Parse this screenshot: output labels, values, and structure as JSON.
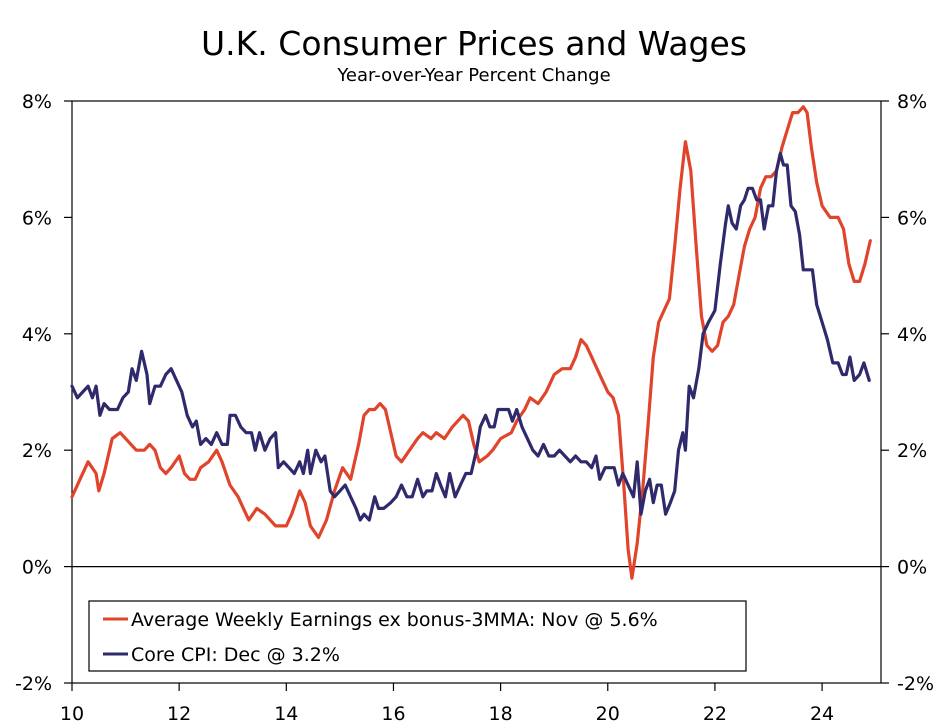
{
  "chart_data": {
    "type": "line",
    "title": "U.K. Consumer Prices and Wages",
    "subtitle": "Year-over-Year Percent Change",
    "xlabel": "",
    "ylabel": "",
    "xlim": [
      2010,
      2025.1
    ],
    "ylim": [
      -2,
      8
    ],
    "x_ticks": [
      {
        "value": 2010,
        "label": "10"
      },
      {
        "value": 2012,
        "label": "12"
      },
      {
        "value": 2014,
        "label": "14"
      },
      {
        "value": 2016,
        "label": "16"
      },
      {
        "value": 2018,
        "label": "18"
      },
      {
        "value": 2020,
        "label": "20"
      },
      {
        "value": 2022,
        "label": "22"
      },
      {
        "value": 2024,
        "label": "24"
      }
    ],
    "y_ticks": [
      {
        "value": 8,
        "label": "8%"
      },
      {
        "value": 6,
        "label": "6%"
      },
      {
        "value": 4,
        "label": "4%"
      },
      {
        "value": 2,
        "label": "2%"
      },
      {
        "value": 0,
        "label": "0%"
      },
      {
        "value": -2,
        "label": "-2%"
      }
    ],
    "grid": false,
    "zero_line": true,
    "legend_position": "bottom-left",
    "series": [
      {
        "name": "Average Weekly Earnings ex bonus-3MMA: Nov @ 5.6%",
        "color": "#e0442a",
        "points": [
          [
            2010.0,
            1.2
          ],
          [
            2010.15,
            1.5
          ],
          [
            2010.3,
            1.8
          ],
          [
            2010.45,
            1.6
          ],
          [
            2010.5,
            1.3
          ],
          [
            2010.6,
            1.6
          ],
          [
            2010.75,
            2.2
          ],
          [
            2010.9,
            2.3
          ],
          [
            2011.0,
            2.2
          ],
          [
            2011.2,
            2.0
          ],
          [
            2011.35,
            2.0
          ],
          [
            2011.45,
            2.1
          ],
          [
            2011.55,
            2.0
          ],
          [
            2011.65,
            1.7
          ],
          [
            2011.75,
            1.6
          ],
          [
            2011.85,
            1.7
          ],
          [
            2012.0,
            1.9
          ],
          [
            2012.1,
            1.6
          ],
          [
            2012.2,
            1.5
          ],
          [
            2012.3,
            1.5
          ],
          [
            2012.4,
            1.7
          ],
          [
            2012.55,
            1.8
          ],
          [
            2012.7,
            2.0
          ],
          [
            2012.8,
            1.8
          ],
          [
            2012.95,
            1.4
          ],
          [
            2013.1,
            1.2
          ],
          [
            2013.2,
            1.0
          ],
          [
            2013.3,
            0.8
          ],
          [
            2013.45,
            1.0
          ],
          [
            2013.6,
            0.9
          ],
          [
            2013.8,
            0.7
          ],
          [
            2014.0,
            0.7
          ],
          [
            2014.1,
            0.9
          ],
          [
            2014.25,
            1.3
          ],
          [
            2014.35,
            1.1
          ],
          [
            2014.45,
            0.7
          ],
          [
            2014.6,
            0.5
          ],
          [
            2014.75,
            0.8
          ],
          [
            2014.9,
            1.3
          ],
          [
            2015.05,
            1.7
          ],
          [
            2015.2,
            1.5
          ],
          [
            2015.35,
            2.1
          ],
          [
            2015.45,
            2.6
          ],
          [
            2015.55,
            2.7
          ],
          [
            2015.65,
            2.7
          ],
          [
            2015.75,
            2.8
          ],
          [
            2015.85,
            2.7
          ],
          [
            2015.95,
            2.3
          ],
          [
            2016.05,
            1.9
          ],
          [
            2016.15,
            1.8
          ],
          [
            2016.3,
            2.0
          ],
          [
            2016.45,
            2.2
          ],
          [
            2016.55,
            2.3
          ],
          [
            2016.7,
            2.2
          ],
          [
            2016.8,
            2.3
          ],
          [
            2016.95,
            2.2
          ],
          [
            2017.1,
            2.4
          ],
          [
            2017.3,
            2.6
          ],
          [
            2017.4,
            2.5
          ],
          [
            2017.5,
            2.1
          ],
          [
            2017.6,
            1.8
          ],
          [
            2017.75,
            1.9
          ],
          [
            2017.85,
            2.0
          ],
          [
            2018.0,
            2.2
          ],
          [
            2018.2,
            2.3
          ],
          [
            2018.3,
            2.5
          ],
          [
            2018.45,
            2.7
          ],
          [
            2018.55,
            2.9
          ],
          [
            2018.7,
            2.8
          ],
          [
            2018.85,
            3.0
          ],
          [
            2019.0,
            3.3
          ],
          [
            2019.15,
            3.4
          ],
          [
            2019.3,
            3.4
          ],
          [
            2019.4,
            3.6
          ],
          [
            2019.5,
            3.9
          ],
          [
            2019.6,
            3.8
          ],
          [
            2019.7,
            3.6
          ],
          [
            2019.8,
            3.4
          ],
          [
            2019.9,
            3.2
          ],
          [
            2020.0,
            3.0
          ],
          [
            2020.1,
            2.9
          ],
          [
            2020.2,
            2.6
          ],
          [
            2020.3,
            1.4
          ],
          [
            2020.38,
            0.3
          ],
          [
            2020.45,
            -0.2
          ],
          [
            2020.55,
            0.4
          ],
          [
            2020.65,
            1.3
          ],
          [
            2020.75,
            2.4
          ],
          [
            2020.85,
            3.6
          ],
          [
            2020.95,
            4.2
          ],
          [
            2021.05,
            4.4
          ],
          [
            2021.15,
            4.6
          ],
          [
            2021.25,
            5.5
          ],
          [
            2021.35,
            6.5
          ],
          [
            2021.45,
            7.3
          ],
          [
            2021.55,
            6.8
          ],
          [
            2021.65,
            5.5
          ],
          [
            2021.75,
            4.3
          ],
          [
            2021.85,
            3.8
          ],
          [
            2021.95,
            3.7
          ],
          [
            2022.05,
            3.8
          ],
          [
            2022.15,
            4.2
          ],
          [
            2022.25,
            4.3
          ],
          [
            2022.35,
            4.5
          ],
          [
            2022.45,
            5.0
          ],
          [
            2022.55,
            5.5
          ],
          [
            2022.65,
            5.8
          ],
          [
            2022.75,
            6.0
          ],
          [
            2022.85,
            6.5
          ],
          [
            2022.95,
            6.7
          ],
          [
            2023.05,
            6.7
          ],
          [
            2023.15,
            6.8
          ],
          [
            2023.25,
            7.2
          ],
          [
            2023.35,
            7.5
          ],
          [
            2023.45,
            7.8
          ],
          [
            2023.55,
            7.8
          ],
          [
            2023.65,
            7.9
          ],
          [
            2023.72,
            7.8
          ],
          [
            2023.8,
            7.2
          ],
          [
            2023.9,
            6.6
          ],
          [
            2024.0,
            6.2
          ],
          [
            2024.15,
            6.0
          ],
          [
            2024.3,
            6.0
          ],
          [
            2024.4,
            5.8
          ],
          [
            2024.5,
            5.2
          ],
          [
            2024.6,
            4.9
          ],
          [
            2024.7,
            4.9
          ],
          [
            2024.8,
            5.2
          ],
          [
            2024.9,
            5.6
          ]
        ]
      },
      {
        "name": "Core CPI: Dec @ 3.2%",
        "color": "#2e2a6b",
        "points": [
          [
            2010.0,
            3.1
          ],
          [
            2010.1,
            2.9
          ],
          [
            2010.2,
            3.0
          ],
          [
            2010.3,
            3.1
          ],
          [
            2010.38,
            2.9
          ],
          [
            2010.45,
            3.1
          ],
          [
            2010.52,
            2.6
          ],
          [
            2010.6,
            2.8
          ],
          [
            2010.7,
            2.7
          ],
          [
            2010.85,
            2.7
          ],
          [
            2010.95,
            2.9
          ],
          [
            2011.05,
            3.0
          ],
          [
            2011.12,
            3.4
          ],
          [
            2011.2,
            3.2
          ],
          [
            2011.3,
            3.7
          ],
          [
            2011.4,
            3.3
          ],
          [
            2011.45,
            2.8
          ],
          [
            2011.55,
            3.1
          ],
          [
            2011.65,
            3.1
          ],
          [
            2011.75,
            3.3
          ],
          [
            2011.85,
            3.4
          ],
          [
            2011.95,
            3.2
          ],
          [
            2012.05,
            3.0
          ],
          [
            2012.15,
            2.6
          ],
          [
            2012.25,
            2.4
          ],
          [
            2012.32,
            2.5
          ],
          [
            2012.4,
            2.1
          ],
          [
            2012.5,
            2.2
          ],
          [
            2012.6,
            2.1
          ],
          [
            2012.7,
            2.3
          ],
          [
            2012.8,
            2.1
          ],
          [
            2012.9,
            2.1
          ],
          [
            2012.95,
            2.6
          ],
          [
            2013.05,
            2.6
          ],
          [
            2013.15,
            2.4
          ],
          [
            2013.25,
            2.3
          ],
          [
            2013.35,
            2.3
          ],
          [
            2013.42,
            2.0
          ],
          [
            2013.5,
            2.3
          ],
          [
            2013.6,
            2.0
          ],
          [
            2013.7,
            2.2
          ],
          [
            2013.8,
            2.3
          ],
          [
            2013.85,
            1.7
          ],
          [
            2013.95,
            1.8
          ],
          [
            2014.05,
            1.7
          ],
          [
            2014.15,
            1.6
          ],
          [
            2014.25,
            1.8
          ],
          [
            2014.32,
            1.6
          ],
          [
            2014.4,
            2.0
          ],
          [
            2014.45,
            1.6
          ],
          [
            2014.55,
            2.0
          ],
          [
            2014.65,
            1.8
          ],
          [
            2014.72,
            1.9
          ],
          [
            2014.82,
            1.3
          ],
          [
            2014.9,
            1.2
          ],
          [
            2015.0,
            1.3
          ],
          [
            2015.1,
            1.4
          ],
          [
            2015.2,
            1.2
          ],
          [
            2015.3,
            1.0
          ],
          [
            2015.38,
            0.8
          ],
          [
            2015.45,
            0.9
          ],
          [
            2015.55,
            0.8
          ],
          [
            2015.65,
            1.2
          ],
          [
            2015.72,
            1.0
          ],
          [
            2015.82,
            1.0
          ],
          [
            2015.95,
            1.1
          ],
          [
            2016.05,
            1.2
          ],
          [
            2016.15,
            1.4
          ],
          [
            2016.25,
            1.2
          ],
          [
            2016.35,
            1.2
          ],
          [
            2016.45,
            1.5
          ],
          [
            2016.55,
            1.2
          ],
          [
            2016.62,
            1.3
          ],
          [
            2016.72,
            1.3
          ],
          [
            2016.8,
            1.6
          ],
          [
            2016.88,
            1.4
          ],
          [
            2016.97,
            1.2
          ],
          [
            2017.05,
            1.6
          ],
          [
            2017.15,
            1.2
          ],
          [
            2017.25,
            1.4
          ],
          [
            2017.35,
            1.6
          ],
          [
            2017.45,
            1.6
          ],
          [
            2017.55,
            2.0
          ],
          [
            2017.62,
            2.4
          ],
          [
            2017.72,
            2.6
          ],
          [
            2017.8,
            2.4
          ],
          [
            2017.88,
            2.4
          ],
          [
            2017.95,
            2.7
          ],
          [
            2018.05,
            2.7
          ],
          [
            2018.15,
            2.7
          ],
          [
            2018.22,
            2.5
          ],
          [
            2018.3,
            2.7
          ],
          [
            2018.4,
            2.4
          ],
          [
            2018.5,
            2.2
          ],
          [
            2018.6,
            2.0
          ],
          [
            2018.7,
            1.9
          ],
          [
            2018.8,
            2.1
          ],
          [
            2018.9,
            1.9
          ],
          [
            2019.0,
            1.9
          ],
          [
            2019.1,
            2.0
          ],
          [
            2019.2,
            1.9
          ],
          [
            2019.3,
            1.8
          ],
          [
            2019.4,
            1.9
          ],
          [
            2019.5,
            1.8
          ],
          [
            2019.6,
            1.8
          ],
          [
            2019.7,
            1.7
          ],
          [
            2019.78,
            1.9
          ],
          [
            2019.85,
            1.5
          ],
          [
            2019.95,
            1.7
          ],
          [
            2020.05,
            1.7
          ],
          [
            2020.12,
            1.7
          ],
          [
            2020.2,
            1.4
          ],
          [
            2020.28,
            1.6
          ],
          [
            2020.38,
            1.4
          ],
          [
            2020.48,
            1.2
          ],
          [
            2020.55,
            1.8
          ],
          [
            2020.62,
            0.9
          ],
          [
            2020.7,
            1.3
          ],
          [
            2020.78,
            1.5
          ],
          [
            2020.85,
            1.1
          ],
          [
            2020.92,
            1.4
          ],
          [
            2021.0,
            1.4
          ],
          [
            2021.08,
            0.9
          ],
          [
            2021.17,
            1.1
          ],
          [
            2021.25,
            1.3
          ],
          [
            2021.32,
            2.0
          ],
          [
            2021.4,
            2.3
          ],
          [
            2021.45,
            2.0
          ],
          [
            2021.52,
            3.1
          ],
          [
            2021.6,
            2.9
          ],
          [
            2021.7,
            3.4
          ],
          [
            2021.78,
            4.0
          ],
          [
            2021.88,
            4.2
          ],
          [
            2022.0,
            4.4
          ],
          [
            2022.1,
            5.2
          ],
          [
            2022.2,
            5.9
          ],
          [
            2022.25,
            6.2
          ],
          [
            2022.32,
            5.9
          ],
          [
            2022.4,
            5.8
          ],
          [
            2022.48,
            6.2
          ],
          [
            2022.55,
            6.3
          ],
          [
            2022.62,
            6.5
          ],
          [
            2022.7,
            6.5
          ],
          [
            2022.78,
            6.3
          ],
          [
            2022.85,
            6.3
          ],
          [
            2022.92,
            5.8
          ],
          [
            2023.0,
            6.2
          ],
          [
            2023.08,
            6.2
          ],
          [
            2023.15,
            6.8
          ],
          [
            2023.22,
            7.1
          ],
          [
            2023.28,
            6.9
          ],
          [
            2023.35,
            6.9
          ],
          [
            2023.42,
            6.2
          ],
          [
            2023.5,
            6.1
          ],
          [
            2023.58,
            5.7
          ],
          [
            2023.65,
            5.1
          ],
          [
            2023.72,
            5.1
          ],
          [
            2023.82,
            5.1
          ],
          [
            2023.9,
            4.5
          ],
          [
            2024.0,
            4.2
          ],
          [
            2024.1,
            3.9
          ],
          [
            2024.2,
            3.5
          ],
          [
            2024.3,
            3.5
          ],
          [
            2024.38,
            3.3
          ],
          [
            2024.45,
            3.3
          ],
          [
            2024.52,
            3.6
          ],
          [
            2024.6,
            3.2
          ],
          [
            2024.7,
            3.3
          ],
          [
            2024.78,
            3.5
          ],
          [
            2024.88,
            3.2
          ]
        ]
      }
    ]
  }
}
